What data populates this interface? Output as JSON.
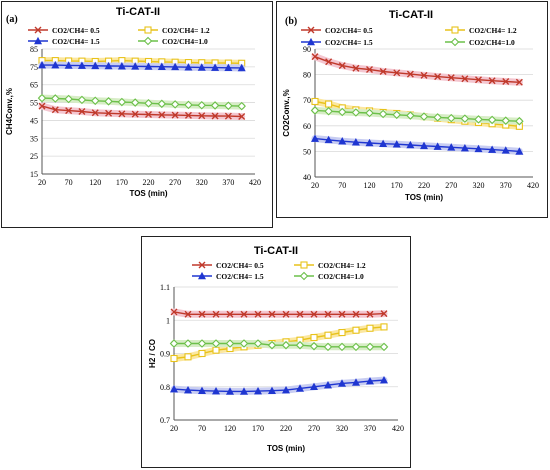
{
  "chart_data": [
    {
      "panel_label": "(a)",
      "type": "line",
      "title": "Ti-CAT-II",
      "xlabel": "TOS (min)",
      "ylabel": "CH4Conv.,%",
      "xlim": [
        20,
        420
      ],
      "ylim": [
        15,
        85
      ],
      "xticks": [
        20,
        70,
        120,
        170,
        220,
        270,
        320,
        370,
        420
      ],
      "yticks": [
        15,
        25,
        35,
        45,
        55,
        65,
        75,
        85
      ],
      "grid": true,
      "legend": "top, two columns",
      "x": [
        20,
        45,
        70,
        95,
        120,
        145,
        170,
        195,
        220,
        245,
        270,
        295,
        320,
        345,
        370,
        395
      ],
      "series": [
        {
          "name": "CO2/CH4= 0.5",
          "color": "#c0392b",
          "marker": "x",
          "band": "#f4c6d0",
          "values": [
            53,
            51,
            50.5,
            50,
            49.3,
            49,
            48.7,
            48.5,
            48.3,
            48.1,
            48,
            47.8,
            47.6,
            47.5,
            47.4,
            47.2
          ]
        },
        {
          "name": "CO2/CH4= 1.2",
          "color": "#e8c21a",
          "marker": "square-open",
          "band": "#fbe7a0",
          "values": [
            78.5,
            78.5,
            78.3,
            78.2,
            78,
            78.2,
            78.5,
            78.2,
            78,
            77.8,
            77.6,
            77.4,
            77.3,
            77.2,
            77.1,
            77
          ]
        },
        {
          "name": "CO2/CH4= 1.5",
          "color": "#1f36d1",
          "marker": "triangle",
          "band": "#c8cdf2",
          "values": [
            76,
            76,
            75.8,
            75.7,
            75.6,
            75.5,
            75.4,
            75.3,
            75.2,
            75.1,
            75,
            74.8,
            74.7,
            74.6,
            74.5,
            74.4
          ]
        },
        {
          "name": "CO2/CH4=1.0",
          "color": "#6cc04a",
          "marker": "diamond-open",
          "band": "#d7edc6",
          "values": [
            57.5,
            57.3,
            57,
            56.5,
            56,
            55.7,
            55.3,
            55,
            54.6,
            54.3,
            54,
            53.7,
            53.5,
            53.4,
            53.2,
            53
          ]
        }
      ]
    },
    {
      "panel_label": "(b)",
      "type": "line",
      "title": "Ti-CAT-II",
      "xlabel": "TOS (min)",
      "ylabel": "CO2Conv.,%",
      "xlim": [
        20,
        420
      ],
      "ylim": [
        40,
        90
      ],
      "xticks": [
        20,
        70,
        120,
        170,
        220,
        270,
        320,
        370,
        420
      ],
      "yticks": [
        40,
        50,
        60,
        70,
        80,
        90
      ],
      "grid": true,
      "legend": "top, two columns",
      "x": [
        20,
        45,
        70,
        95,
        120,
        145,
        170,
        195,
        220,
        245,
        270,
        295,
        320,
        345,
        370,
        395
      ],
      "series": [
        {
          "name": "CO2/CH4= 0.5",
          "color": "#c0392b",
          "marker": "x",
          "band": "#f4c6d0",
          "values": [
            87,
            85,
            83.5,
            82.5,
            82,
            81.2,
            80.7,
            80.2,
            79.7,
            79.2,
            78.8,
            78.4,
            78,
            77.6,
            77.3,
            77
          ]
        },
        {
          "name": "CO2/CH4= 1.2",
          "color": "#e8c21a",
          "marker": "square-open",
          "band": "#fbe7a0",
          "values": [
            69.5,
            68.5,
            67,
            66.2,
            65.8,
            65.2,
            64.8,
            64.2,
            63.6,
            63,
            62.4,
            61.8,
            61.3,
            60.8,
            60.3,
            59.8
          ]
        },
        {
          "name": "CO2/CH4= 1.5",
          "color": "#1f36d1",
          "marker": "triangle",
          "band": "#c8cdf2",
          "values": [
            55,
            54.5,
            54,
            53.6,
            53.3,
            53,
            52.8,
            52.5,
            52.2,
            51.9,
            51.6,
            51.3,
            51,
            50.7,
            50.4,
            50
          ]
        },
        {
          "name": "CO2/CH4=1.0",
          "color": "#6cc04a",
          "marker": "diamond-open",
          "band": "#d7edc6",
          "values": [
            66,
            65.7,
            65.4,
            65.2,
            65,
            64.6,
            64.3,
            64,
            63.6,
            63.3,
            63,
            62.8,
            62.5,
            62.3,
            62,
            61.8
          ]
        }
      ]
    },
    {
      "type": "line",
      "title": "Ti-CAT-II",
      "xlabel": "TOS (min)",
      "ylabel": "H2 / CO",
      "xlim": [
        20,
        420
      ],
      "ylim": [
        0.7,
        1.1
      ],
      "xticks": [
        20,
        70,
        120,
        170,
        220,
        270,
        320,
        370,
        420
      ],
      "yticks": [
        0.7,
        0.8,
        0.9,
        1,
        1.1
      ],
      "grid": true,
      "legend": "top, two columns",
      "x": [
        20,
        45,
        70,
        95,
        120,
        145,
        170,
        195,
        220,
        245,
        270,
        295,
        320,
        345,
        370,
        395
      ],
      "series": [
        {
          "name": "CO2/CH4= 0.5",
          "color": "#c0392b",
          "marker": "x",
          "band": "#f4c6d0",
          "values": [
            1.025,
            1.018,
            1.018,
            1.018,
            1.018,
            1.018,
            1.018,
            1.018,
            1.018,
            1.018,
            1.018,
            1.018,
            1.018,
            1.018,
            1.018,
            1.02
          ]
        },
        {
          "name": "CO2/CH4= 1.2",
          "color": "#e8c21a",
          "marker": "square-open",
          "band": "#fbe7a0",
          "values": [
            0.885,
            0.89,
            0.9,
            0.91,
            0.915,
            0.92,
            0.925,
            0.93,
            0.935,
            0.94,
            0.948,
            0.955,
            0.963,
            0.97,
            0.976,
            0.98
          ]
        },
        {
          "name": "CO2/CH4= 1.5",
          "color": "#1f36d1",
          "marker": "triangle",
          "band": "#c8cdf2",
          "values": [
            0.793,
            0.79,
            0.788,
            0.787,
            0.786,
            0.786,
            0.787,
            0.788,
            0.79,
            0.795,
            0.8,
            0.805,
            0.81,
            0.813,
            0.817,
            0.82
          ]
        },
        {
          "name": "CO2/CH4=1.0",
          "color": "#6cc04a",
          "marker": "diamond-open",
          "band": "#d7edc6",
          "values": [
            0.93,
            0.93,
            0.93,
            0.93,
            0.93,
            0.93,
            0.93,
            0.925,
            0.925,
            0.925,
            0.922,
            0.92,
            0.92,
            0.92,
            0.92,
            0.92
          ]
        }
      ]
    }
  ]
}
